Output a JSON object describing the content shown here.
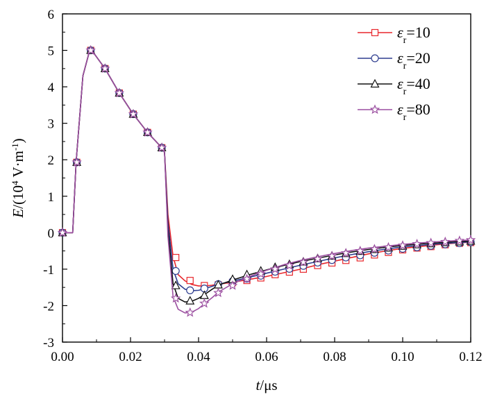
{
  "chart_data": {
    "type": "line",
    "xlim": [
      0,
      0.12
    ],
    "ylim": [
      -3,
      6
    ],
    "x_ticks": [
      0,
      0.02,
      0.04,
      0.06,
      0.08,
      0.1,
      0.12
    ],
    "x_tick_labels": [
      "0.00",
      "0.02",
      "0.04",
      "0.06",
      "0.08",
      "0.10",
      "0.12"
    ],
    "y_ticks": [
      -3,
      -2,
      -1,
      0,
      1,
      2,
      3,
      4,
      5,
      6
    ],
    "y_tick_labels": [
      "-3",
      "-2",
      "-1",
      "0",
      "1",
      "2",
      "3",
      "4",
      "5",
      "6"
    ],
    "xlabel": {
      "italic": "t",
      "rest": "/μs"
    },
    "ylabel": {
      "italic": "E",
      "rest": "/(10",
      "sup": "4",
      "rest2": " V·m",
      "sup2": "-1",
      "rest3": ")"
    },
    "grid": false,
    "legend_position": "top-right",
    "series": [
      {
        "name": "ε_r=10",
        "legend": {
          "symbol": "ε",
          "sub": "r",
          "value": "=10"
        },
        "color": "#e8262b",
        "marker": "square",
        "x": [
          0,
          0.003,
          0.004,
          0.006,
          0.008,
          0.009,
          0.0125,
          0.0167,
          0.0208,
          0.025,
          0.0292,
          0.03,
          0.031,
          0.0325,
          0.034,
          0.036,
          0.038,
          0.04,
          0.042,
          0.044,
          0.046,
          0.05,
          0.055,
          0.06,
          0.065,
          0.07,
          0.075,
          0.08,
          0.085,
          0.09,
          0.095,
          0.1,
          0.105,
          0.11,
          0.115,
          0.12
        ],
        "y": [
          0,
          0,
          1.93,
          4.3,
          5.0,
          4.95,
          4.5,
          3.83,
          3.25,
          2.75,
          2.33,
          2.2,
          0.5,
          -0.65,
          -1.15,
          -1.32,
          -1.42,
          -1.46,
          -1.46,
          -1.44,
          -1.41,
          -1.36,
          -1.28,
          -1.2,
          -1.1,
          -1.0,
          -0.88,
          -0.78,
          -0.68,
          -0.58,
          -0.5,
          -0.43,
          -0.38,
          -0.33,
          -0.29,
          -0.26
        ],
        "markers_x": [
          0,
          0.0042,
          0.0083,
          0.0125,
          0.0167,
          0.0208,
          0.025,
          0.0292,
          0.0333,
          0.0375,
          0.0417,
          0.0458,
          0.05,
          0.0542,
          0.0583,
          0.0625,
          0.0667,
          0.0708,
          0.075,
          0.0792,
          0.0833,
          0.0875,
          0.0917,
          0.0958,
          0.1,
          0.1042,
          0.1083,
          0.1125,
          0.1167,
          0.12
        ],
        "markers_y": [
          0,
          1.93,
          5.0,
          4.5,
          3.83,
          3.25,
          2.75,
          2.33,
          -0.68,
          -1.31,
          -1.45,
          -1.43,
          -1.37,
          -1.31,
          -1.24,
          -1.15,
          -1.08,
          -1.0,
          -0.9,
          -0.83,
          -0.76,
          -0.69,
          -0.61,
          -0.54,
          -0.47,
          -0.42,
          -0.38,
          -0.33,
          -0.29,
          -0.27
        ]
      },
      {
        "name": "ε_r=20",
        "legend": {
          "symbol": "ε",
          "sub": "r",
          "value": "=20"
        },
        "color": "#2e3d8f",
        "marker": "circle",
        "x": [
          0,
          0.003,
          0.004,
          0.006,
          0.008,
          0.009,
          0.0125,
          0.0167,
          0.0208,
          0.025,
          0.0292,
          0.03,
          0.031,
          0.0325,
          0.034,
          0.036,
          0.038,
          0.04,
          0.042,
          0.044,
          0.046,
          0.05,
          0.055,
          0.06,
          0.065,
          0.07,
          0.075,
          0.08,
          0.085,
          0.09,
          0.095,
          0.1,
          0.105,
          0.11,
          0.115,
          0.12
        ],
        "y": [
          0,
          0,
          1.93,
          4.3,
          5.0,
          4.95,
          4.5,
          3.83,
          3.25,
          2.75,
          2.33,
          2.2,
          0.3,
          -1.0,
          -1.4,
          -1.55,
          -1.59,
          -1.58,
          -1.53,
          -1.47,
          -1.41,
          -1.33,
          -1.22,
          -1.11,
          -1.0,
          -0.89,
          -0.79,
          -0.69,
          -0.6,
          -0.52,
          -0.45,
          -0.39,
          -0.35,
          -0.31,
          -0.28,
          -0.25
        ],
        "markers_x": [
          0,
          0.0042,
          0.0083,
          0.0125,
          0.0167,
          0.0208,
          0.025,
          0.0292,
          0.0333,
          0.0375,
          0.0417,
          0.0458,
          0.05,
          0.0542,
          0.0583,
          0.0625,
          0.0667,
          0.0708,
          0.075,
          0.0792,
          0.0833,
          0.0875,
          0.0917,
          0.0958,
          0.1,
          0.1042,
          0.1083,
          0.1125,
          0.1167,
          0.12
        ],
        "markers_y": [
          0,
          1.93,
          5.0,
          4.5,
          3.83,
          3.25,
          2.75,
          2.33,
          -1.05,
          -1.58,
          -1.53,
          -1.41,
          -1.33,
          -1.26,
          -1.18,
          -1.07,
          -0.99,
          -0.91,
          -0.82,
          -0.75,
          -0.68,
          -0.62,
          -0.55,
          -0.49,
          -0.44,
          -0.4,
          -0.36,
          -0.32,
          -0.29,
          -0.26
        ]
      },
      {
        "name": "ε_r=40",
        "legend": {
          "symbol": "ε",
          "sub": "r",
          "value": "=40"
        },
        "color": "#111111",
        "marker": "triangle",
        "x": [
          0,
          0.003,
          0.004,
          0.006,
          0.008,
          0.009,
          0.0125,
          0.0167,
          0.0208,
          0.025,
          0.0292,
          0.03,
          0.031,
          0.0325,
          0.034,
          0.036,
          0.038,
          0.04,
          0.042,
          0.044,
          0.046,
          0.05,
          0.055,
          0.06,
          0.065,
          0.07,
          0.075,
          0.08,
          0.085,
          0.09,
          0.095,
          0.1,
          0.105,
          0.11,
          0.115,
          0.12
        ],
        "y": [
          0,
          0,
          1.93,
          4.3,
          5.0,
          4.95,
          4.5,
          3.83,
          3.25,
          2.75,
          2.33,
          2.2,
          0.1,
          -1.4,
          -1.8,
          -1.9,
          -1.88,
          -1.8,
          -1.68,
          -1.55,
          -1.43,
          -1.3,
          -1.15,
          -1.02,
          -0.9,
          -0.79,
          -0.7,
          -0.61,
          -0.53,
          -0.46,
          -0.4,
          -0.35,
          -0.31,
          -0.28,
          -0.25,
          -0.23
        ],
        "markers_x": [
          0,
          0.0042,
          0.0083,
          0.0125,
          0.0167,
          0.0208,
          0.025,
          0.0292,
          0.0333,
          0.0375,
          0.0417,
          0.0458,
          0.05,
          0.0542,
          0.0583,
          0.0625,
          0.0667,
          0.0708,
          0.075,
          0.0792,
          0.0833,
          0.0875,
          0.0917,
          0.0958,
          0.1,
          0.1042,
          0.1083,
          0.1125,
          0.1167,
          0.12
        ],
        "markers_y": [
          0,
          1.93,
          5.0,
          4.5,
          3.83,
          3.25,
          2.75,
          2.33,
          -1.45,
          -1.87,
          -1.72,
          -1.43,
          -1.28,
          -1.15,
          -1.05,
          -0.95,
          -0.87,
          -0.8,
          -0.71,
          -0.64,
          -0.57,
          -0.51,
          -0.46,
          -0.42,
          -0.37,
          -0.33,
          -0.3,
          -0.27,
          -0.25,
          -0.23
        ]
      },
      {
        "name": "ε_r=80",
        "legend": {
          "symbol": "ε",
          "sub": "r",
          "value": "=80"
        },
        "color": "#9b4fa0",
        "marker": "star",
        "x": [
          0,
          0.003,
          0.004,
          0.006,
          0.008,
          0.009,
          0.0125,
          0.0167,
          0.0208,
          0.025,
          0.0292,
          0.03,
          0.031,
          0.0325,
          0.034,
          0.036,
          0.038,
          0.04,
          0.042,
          0.044,
          0.046,
          0.05,
          0.055,
          0.06,
          0.065,
          0.07,
          0.075,
          0.08,
          0.085,
          0.09,
          0.095,
          0.1,
          0.105,
          0.11,
          0.115,
          0.12
        ],
        "y": [
          0,
          0,
          1.93,
          4.3,
          5.0,
          4.95,
          4.5,
          3.83,
          3.25,
          2.75,
          2.33,
          2.2,
          -0.1,
          -1.75,
          -2.1,
          -2.2,
          -2.18,
          -2.08,
          -1.93,
          -1.78,
          -1.62,
          -1.4,
          -1.2,
          -1.03,
          -0.88,
          -0.76,
          -0.66,
          -0.57,
          -0.49,
          -0.42,
          -0.37,
          -0.32,
          -0.28,
          -0.25,
          -0.22,
          -0.2
        ],
        "markers_x": [
          0,
          0.0042,
          0.0083,
          0.0125,
          0.0167,
          0.0208,
          0.025,
          0.0292,
          0.0333,
          0.0375,
          0.0417,
          0.0458,
          0.05,
          0.0542,
          0.0583,
          0.0625,
          0.0667,
          0.0708,
          0.075,
          0.0792,
          0.0833,
          0.0875,
          0.0917,
          0.0958,
          0.1,
          0.1042,
          0.1083,
          0.1125,
          0.1167,
          0.12
        ],
        "markers_y": [
          0,
          1.93,
          5.0,
          4.5,
          3.83,
          3.25,
          2.75,
          2.33,
          -1.8,
          -2.19,
          -1.94,
          -1.65,
          -1.45,
          -1.27,
          -1.13,
          -1.0,
          -0.9,
          -0.81,
          -0.72,
          -0.64,
          -0.56,
          -0.5,
          -0.45,
          -0.4,
          -0.35,
          -0.31,
          -0.28,
          -0.25,
          -0.22,
          -0.2
        ]
      }
    ]
  }
}
